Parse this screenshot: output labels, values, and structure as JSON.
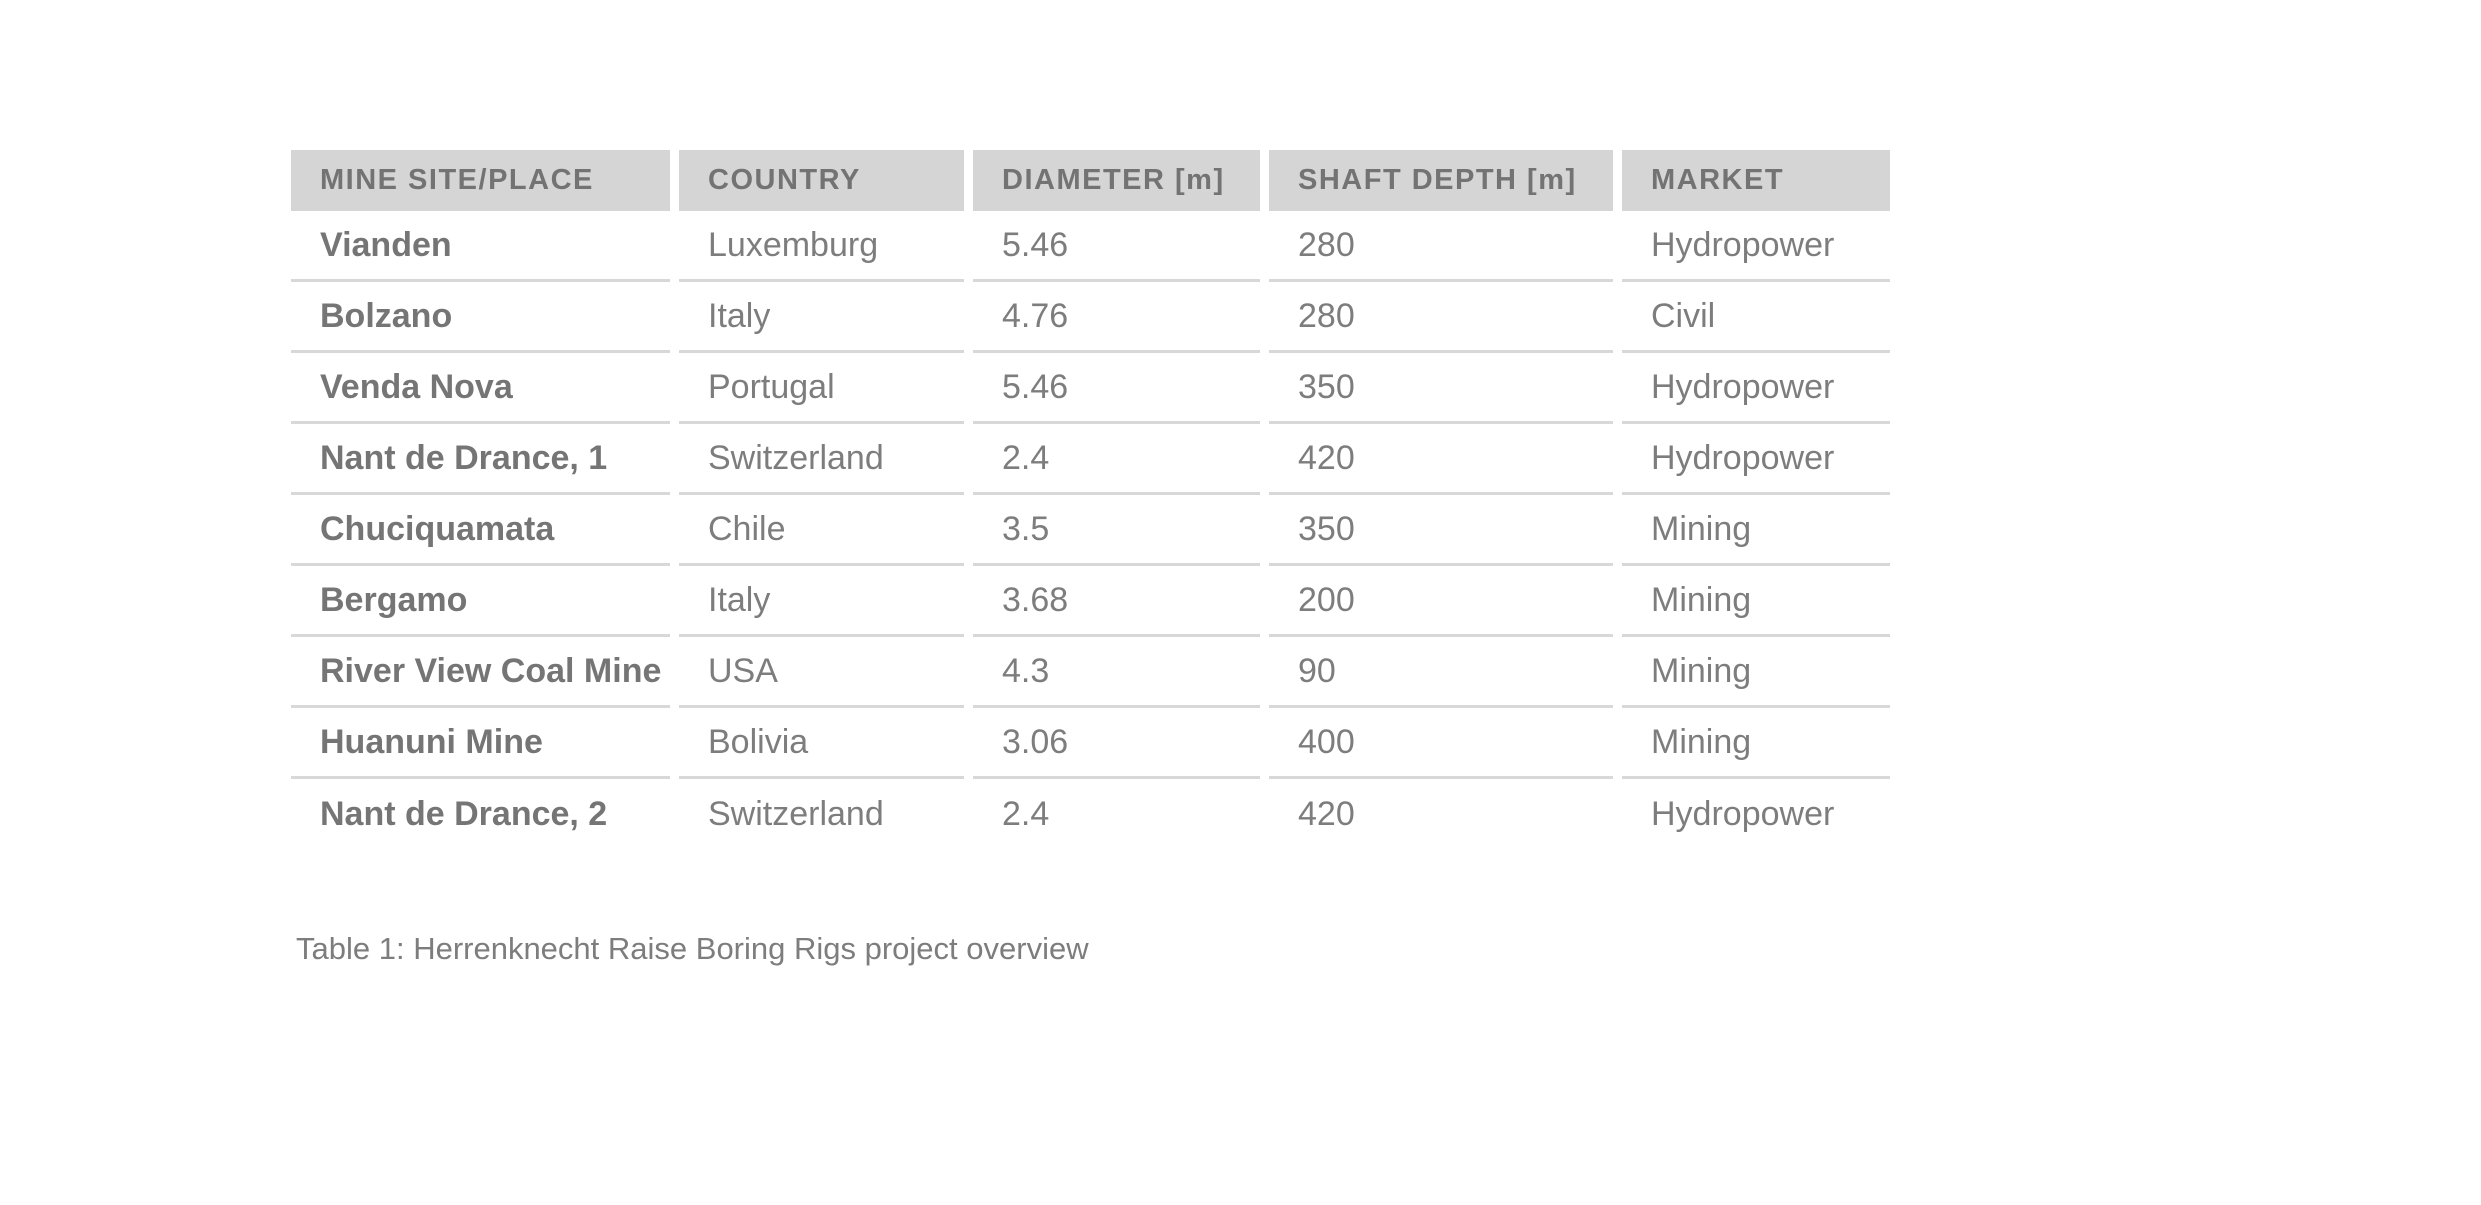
{
  "colors": {
    "page_bg": "#ffffff",
    "header_bg": "#d5d5d5",
    "header_text": "#737373",
    "cell_text": "#7d7d7d",
    "row_label_text": "#757575",
    "divider": "#d8d8d8",
    "caption_text": "#7d7d7d"
  },
  "table": {
    "columns": [
      {
        "key": "site",
        "label": "MINE SITE/PLACE"
      },
      {
        "key": "country",
        "label": "COUNTRY"
      },
      {
        "key": "diameter",
        "label": "DIAMETER [m]"
      },
      {
        "key": "shaft_depth",
        "label": "SHAFT DEPTH [m]"
      },
      {
        "key": "market",
        "label": "MARKET"
      }
    ],
    "rows": [
      [
        "Vianden",
        "Luxemburg",
        "5.46",
        "280",
        "Hydropower"
      ],
      [
        "Bolzano",
        "Italy",
        "4.76",
        "280",
        "Civil"
      ],
      [
        "Venda Nova",
        "Portugal",
        "5.46",
        "350",
        "Hydropower"
      ],
      [
        "Nant de Drance, 1",
        "Switzerland",
        "2.4",
        "420",
        "Hydropower"
      ],
      [
        "Chuciquamata",
        "Chile",
        "3.5",
        "350",
        "Mining"
      ],
      [
        "Bergamo",
        "Italy",
        "3.68",
        "200",
        "Mining"
      ],
      [
        "River View Coal Mine",
        "USA",
        "4.3",
        "90",
        "Mining"
      ],
      [
        "Huanuni Mine",
        "Bolivia",
        "3.06",
        "400",
        "Mining"
      ],
      [
        "Nant de Drance, 2",
        "Switzerland",
        "2.4",
        "420",
        "Hydropower"
      ]
    ]
  },
  "caption": {
    "text": "Table 1: Herrenknecht Raise Boring Rigs project overview"
  }
}
